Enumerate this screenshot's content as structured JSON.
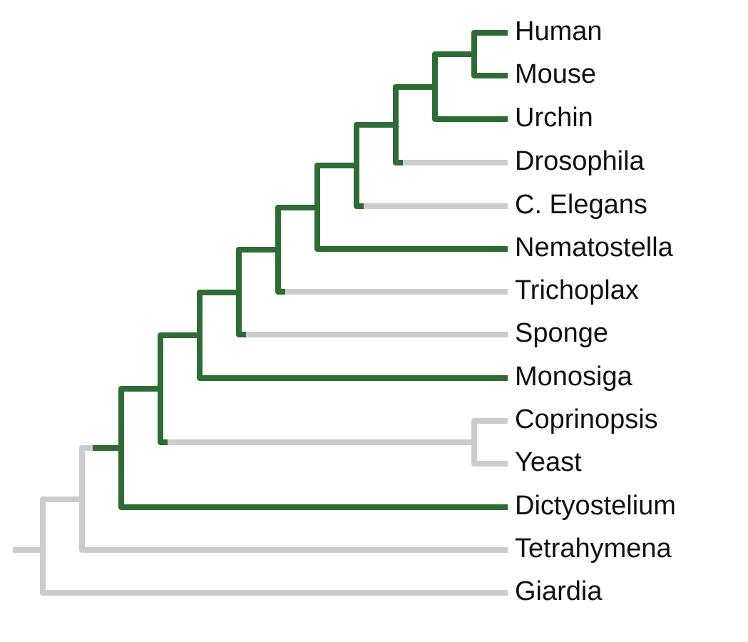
{
  "tree": {
    "leaves": [
      {
        "label": "Human"
      },
      {
        "label": "Mouse"
      },
      {
        "label": "Urchin"
      },
      {
        "label": "Drosophila"
      },
      {
        "label": "C. Elegans"
      },
      {
        "label": "Nematostella"
      },
      {
        "label": "Trichoplax"
      },
      {
        "label": "Sponge"
      },
      {
        "label": "Monosiga"
      },
      {
        "label": "Coprinopsis"
      },
      {
        "label": "Yeast"
      },
      {
        "label": "Dictyostelium"
      },
      {
        "label": "Tetrahymena"
      },
      {
        "label": "Giardia"
      }
    ]
  }
}
